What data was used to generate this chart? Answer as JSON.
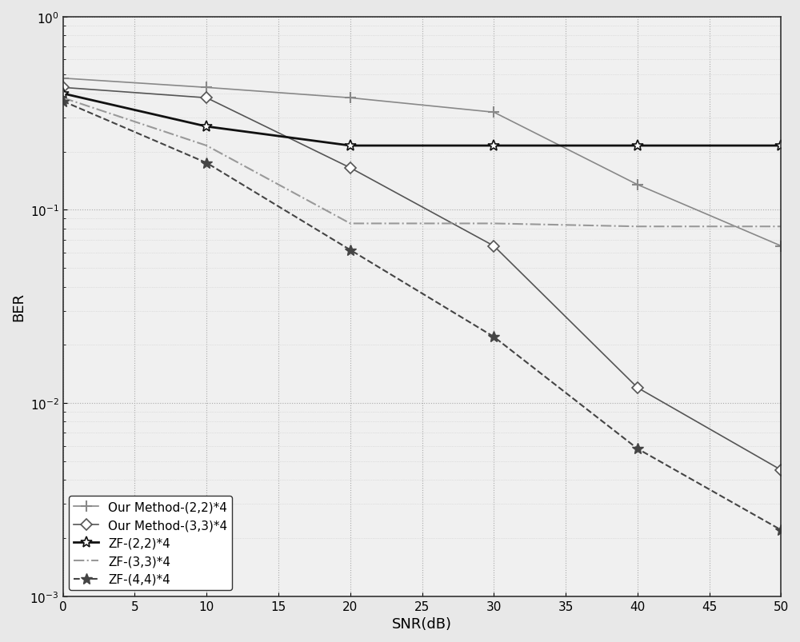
{
  "snr": [
    0,
    10,
    20,
    30,
    40,
    50
  ],
  "our_method_22": [
    0.48,
    0.43,
    0.38,
    0.32,
    0.135,
    0.065
  ],
  "our_method_33": [
    0.43,
    0.38,
    0.165,
    0.065,
    0.012,
    0.0045
  ],
  "zf_22": [
    0.4,
    0.27,
    0.215,
    0.215,
    0.215,
    0.215
  ],
  "zf_33": [
    0.38,
    0.215,
    0.085,
    0.085,
    0.082,
    0.082
  ],
  "zf_44": [
    0.365,
    0.175,
    0.062,
    0.022,
    0.0058,
    0.0022
  ],
  "xlabel": "SNR(dB)",
  "ylabel": "BER",
  "xlim": [
    0,
    50
  ],
  "ylim_min": 0.001,
  "ylim_max": 1.0,
  "color_our_22": "#888888",
  "color_our_33": "#555555",
  "color_zf_22": "#111111",
  "color_zf_33": "#999999",
  "color_zf_44": "#444444",
  "legend_labels": [
    "Our Method-(2,2)*4",
    "Our Method-(3,3)*4",
    "ZF-(2,2)*4",
    "ZF-(3,3)*4",
    "ZF-(4,4)*4"
  ],
  "bg_color": "#f0f0f0"
}
